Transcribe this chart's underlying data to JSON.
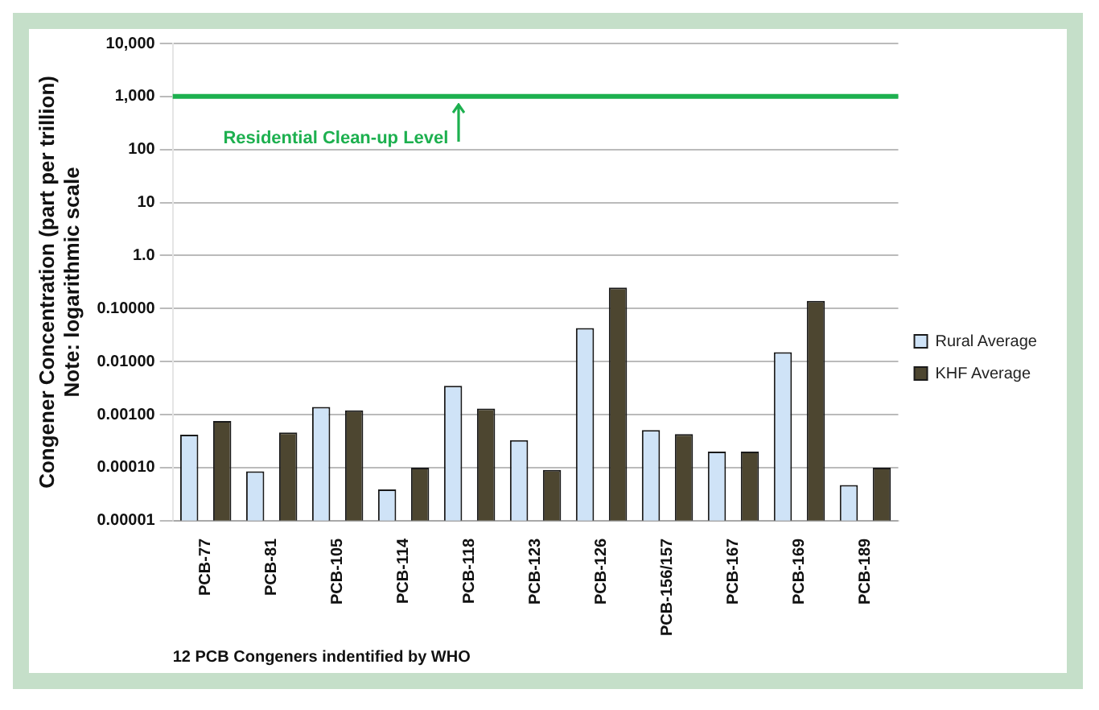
{
  "chart_data": {
    "type": "bar",
    "xlabel": "12 PCB Congeners indentified by WHO",
    "ylabel": "Congener Concentration (part per trillion)\nNote: logarithmic scale",
    "categories": [
      "PCB-77",
      "PCB-81",
      "PCB-105",
      "PCB-114",
      "PCB-118",
      "PCB-123",
      "PCB-126",
      "PCB-156/157",
      "PCB-167",
      "PCB-169",
      "PCB-189"
    ],
    "series": [
      {
        "name": "Rural Average",
        "color": "#cfe3f7",
        "values": [
          0.00042,
          8.5e-05,
          0.0014,
          3.9e-05,
          0.0035,
          0.00033,
          0.043,
          0.00051,
          0.0002,
          0.015,
          4.7e-05
        ]
      },
      {
        "name": "KHF Average",
        "color": "#4d4630",
        "values": [
          0.00076,
          0.00046,
          0.0012,
          0.0001,
          0.0013,
          9.1e-05,
          0.25,
          0.00043,
          0.0002,
          0.14,
          0.0001
        ]
      }
    ],
    "log": "y",
    "ylim": [
      1e-05,
      10000
    ],
    "yticks": [
      {
        "value": 1e-05,
        "label": "0.00001"
      },
      {
        "value": 0.0001,
        "label": "0.00010"
      },
      {
        "value": 0.001,
        "label": "0.00100"
      },
      {
        "value": 0.01,
        "label": "0.01000"
      },
      {
        "value": 0.1,
        "label": "0.10000"
      },
      {
        "value": 1,
        "label": "1.0"
      },
      10,
      100,
      {
        "value": 1000,
        "label": "1,000"
      },
      {
        "value": 10000,
        "label": "10,000"
      }
    ],
    "grid": "y",
    "legend": "right",
    "ref_lines": [
      {
        "axis": "y",
        "value": 1000,
        "label": "Residential Clean-up Level",
        "color": "#1db04f"
      }
    ]
  }
}
